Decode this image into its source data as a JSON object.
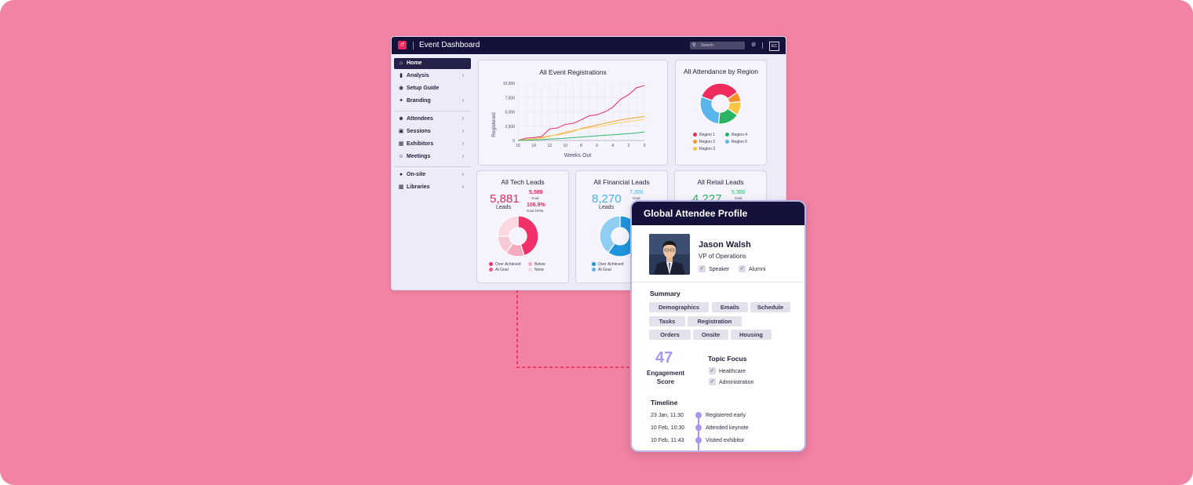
{
  "dashboard": {
    "title": "Event Dashboard",
    "search_placeholder": "Search",
    "user_initials": "EC",
    "logo_text": "rf"
  },
  "sidebar": {
    "items": [
      {
        "label": "Home",
        "icon": "home-icon",
        "active": true,
        "chevron": false
      },
      {
        "label": "Analysis",
        "icon": "bar-chart-icon",
        "chevron": true
      },
      {
        "label": "Setup Guide",
        "icon": "compass-icon",
        "chevron": false
      },
      {
        "label": "Branding",
        "icon": "sparkle-icon",
        "chevron": true
      },
      {
        "label": "Attendees",
        "icon": "person-icon",
        "chevron": true
      },
      {
        "label": "Sessions",
        "icon": "screen-icon",
        "chevron": true
      },
      {
        "label": "Exhibitors",
        "icon": "booth-icon",
        "chevron": true
      },
      {
        "label": "Meetings",
        "icon": "people-icon",
        "chevron": true
      },
      {
        "label": "On-site",
        "icon": "pin-icon",
        "chevron": true
      },
      {
        "label": "Libraries",
        "icon": "book-icon",
        "chevron": true
      }
    ]
  },
  "registrations": {
    "title": "All Event Registrations",
    "ylabel": "Registered",
    "xlabel": "Weeks Out"
  },
  "attendance": {
    "title": "All Attendance by Region"
  },
  "tech": {
    "title": "All Tech Leads",
    "value": "5,881",
    "value_label": "Leads",
    "goal": "5,500",
    "goal_label": "Goal",
    "delta": "106.9%",
    "delta_label": "Goal Delta",
    "legend": [
      "Over Achieved",
      "Below",
      "At Goal",
      "None"
    ]
  },
  "financial": {
    "title": "All Financial Leads",
    "value": "8,270",
    "value_label": "Leads",
    "goal": "7,300",
    "goal_label": "Goal",
    "legend": [
      "Over Achieved",
      "At Goal"
    ]
  },
  "retail": {
    "title": "All Retail Leads",
    "value": "4,227",
    "goal": "5,300",
    "goal_label": "Goal"
  },
  "profile": {
    "header": "Global Attendee Profile",
    "name": "Jason Walsh",
    "role": "VP of Operations",
    "tags": [
      "Speaker",
      "Alumni"
    ],
    "summary_title": "Summary",
    "summary_pills": [
      "Demographics",
      "Emails",
      "Schedule",
      "Tasks",
      "Registration",
      "Orders",
      "Onsite",
      "Housing"
    ],
    "score": "47",
    "score_label_1": "Engagement",
    "score_label_2": "Score",
    "topic_title": "Topic Focus",
    "topics": [
      "Healthcare",
      "Administration"
    ],
    "timeline_title": "Timeline",
    "timeline": [
      {
        "date": "23 Jan, 11:30",
        "event": "Registered early"
      },
      {
        "date": "10 Feb, 10:30",
        "event": "Attended keynote"
      },
      {
        "date": "10 Feb, 11:43",
        "event": "Visited exhibitor"
      }
    ]
  },
  "chart_data": [
    {
      "type": "line",
      "title": "All Event Registrations",
      "xlabel": "Weeks Out",
      "ylabel": "Registered",
      "x": [
        16,
        15,
        14,
        13,
        12,
        11,
        10,
        9,
        8,
        7,
        6,
        5,
        4,
        3,
        2,
        1,
        0
      ],
      "x_ticks": [
        "16",
        "14",
        "12",
        "10",
        "8",
        "6",
        "4",
        "2",
        "0"
      ],
      "y_ticks": [
        "0",
        "2,500",
        "5,000",
        "7,500",
        "10,000"
      ],
      "ylim": [
        0,
        10000
      ],
      "grid": true,
      "series": [
        {
          "color": "#e8285a",
          "values": [
            0,
            400,
            500,
            700,
            2000,
            2200,
            2800,
            3000,
            3600,
            4300,
            4500,
            5000,
            5800,
            7200,
            8000,
            9200,
            9600
          ]
        },
        {
          "color": "#f5a02a",
          "values": [
            0,
            150,
            300,
            500,
            800,
            1000,
            1300,
            1600,
            2100,
            2400,
            2700,
            3000,
            3300,
            3600,
            3800,
            4000,
            4200
          ]
        },
        {
          "color": "#f7d06a",
          "values": [
            0,
            100,
            250,
            400,
            700,
            1100,
            1500,
            1800,
            2000,
            2200,
            2400,
            2600,
            2900,
            3100,
            3300,
            3500,
            3700
          ]
        },
        {
          "color": "#2fb86a",
          "values": [
            0,
            50,
            100,
            150,
            250,
            300,
            400,
            500,
            600,
            700,
            800,
            900,
            1000,
            1100,
            1200,
            1300,
            1500
          ]
        }
      ]
    },
    {
      "type": "pie",
      "title": "All Attendance by Region",
      "categories": [
        "Region 1",
        "Region 2",
        "Region 3",
        "Region 4",
        "Region 6"
      ],
      "values": [
        35,
        8,
        11,
        17,
        29
      ],
      "colors": [
        "#ee2c5e",
        "#f5902a",
        "#f7c443",
        "#29b464",
        "#5ab5ec"
      ],
      "donut": true
    },
    {
      "type": "pie",
      "title": "All Tech Leads",
      "categories": [
        "Over Achieved",
        "Below",
        "At Goal",
        "None"
      ],
      "values": [
        45,
        15,
        15,
        25
      ],
      "colors": [
        "#f0316a",
        "#f7a9c0",
        "#f7c9d6",
        "#fbd7e1"
      ],
      "donut": true
    },
    {
      "type": "pie",
      "title": "All Financial Leads",
      "categories": [
        "Over Achieved",
        "At Goal"
      ],
      "values": [
        60,
        40
      ],
      "colors": [
        "#1f95db",
        "#8fcdf3"
      ],
      "donut": true
    }
  ]
}
